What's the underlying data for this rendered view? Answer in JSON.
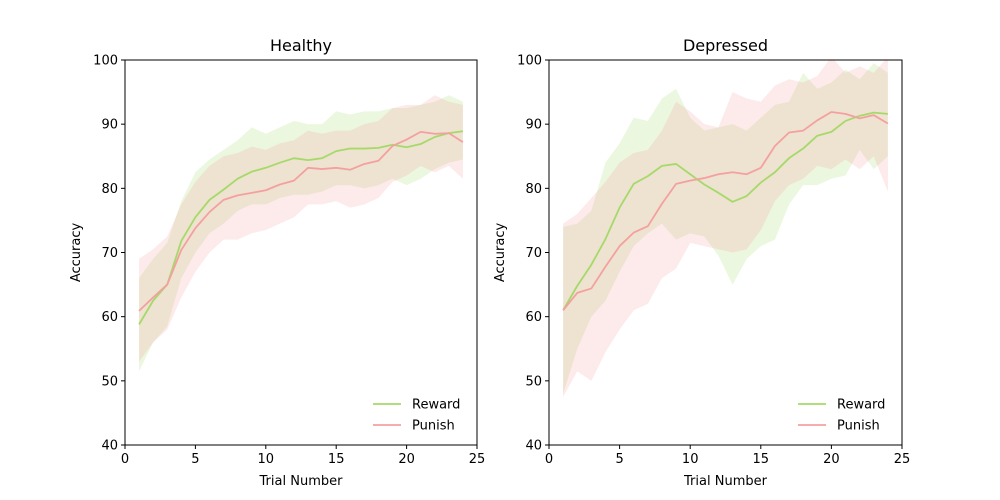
{
  "chart_data": [
    {
      "type": "line",
      "title": "Healthy",
      "xlabel": "Trial Number",
      "ylabel": "Accuracy",
      "xlim": [
        0,
        25
      ],
      "ylim": [
        40,
        100
      ],
      "xticks": [
        0,
        5,
        10,
        15,
        20,
        25
      ],
      "yticks": [
        40,
        50,
        60,
        70,
        80,
        90,
        100
      ],
      "grid": false,
      "legend_position": "lower-right",
      "x": [
        1,
        2,
        3,
        4,
        5,
        6,
        7,
        8,
        9,
        10,
        11,
        12,
        13,
        14,
        15,
        16,
        17,
        18,
        19,
        20,
        21,
        22,
        23,
        24
      ],
      "series": [
        {
          "name": "Reward",
          "color": "#a6d96a",
          "values": [
            58.8,
            62.5,
            65.0,
            71.8,
            75.5,
            78.2,
            79.8,
            81.5,
            82.6,
            83.2,
            84.0,
            84.7,
            84.4,
            84.7,
            85.8,
            86.2,
            86.2,
            86.3,
            86.8,
            86.4,
            86.9,
            88.0,
            88.6,
            88.9
          ],
          "lower": [
            51.5,
            56.0,
            58.5,
            66.0,
            70.0,
            73.0,
            74.5,
            76.5,
            77.5,
            77.5,
            78.5,
            79.0,
            79.0,
            79.5,
            80.5,
            80.5,
            80.0,
            80.5,
            81.5,
            80.5,
            81.5,
            83.0,
            84.0,
            84.5
          ],
          "upper": [
            66.0,
            69.0,
            71.5,
            78.0,
            82.5,
            84.5,
            86.0,
            87.5,
            89.5,
            88.5,
            89.5,
            90.5,
            90.0,
            90.0,
            92.0,
            91.5,
            92.0,
            92.0,
            92.5,
            92.5,
            93.0,
            93.5,
            94.5,
            93.5
          ]
        },
        {
          "name": "Punish",
          "color": "#f4a0a0",
          "values": [
            60.9,
            63.0,
            65.0,
            70.4,
            73.8,
            76.3,
            78.2,
            78.9,
            79.3,
            79.7,
            80.6,
            81.2,
            83.2,
            83.0,
            83.2,
            82.9,
            83.8,
            84.3,
            86.6,
            87.6,
            88.8,
            88.5,
            88.6,
            87.2
          ],
          "lower": [
            53.0,
            56.0,
            58.0,
            63.0,
            67.0,
            70.0,
            72.0,
            72.0,
            73.0,
            73.5,
            74.5,
            75.5,
            77.5,
            77.5,
            78.0,
            77.0,
            77.5,
            78.5,
            81.0,
            82.0,
            83.5,
            82.5,
            83.5,
            81.5
          ],
          "upper": [
            69.0,
            70.5,
            72.5,
            77.5,
            81.0,
            83.5,
            85.0,
            85.5,
            86.5,
            86.0,
            87.0,
            87.5,
            89.0,
            88.5,
            89.0,
            89.0,
            90.0,
            90.5,
            92.5,
            93.0,
            93.0,
            94.5,
            93.5,
            93.0
          ]
        }
      ]
    },
    {
      "type": "line",
      "title": "Depressed",
      "xlabel": "Trial Number",
      "ylabel": "Accuracy",
      "xlim": [
        0,
        25
      ],
      "ylim": [
        40,
        100
      ],
      "xticks": [
        0,
        5,
        10,
        15,
        20,
        25
      ],
      "yticks": [
        40,
        50,
        60,
        70,
        80,
        90,
        100
      ],
      "grid": false,
      "legend_position": "lower-right",
      "x": [
        1,
        2,
        3,
        4,
        5,
        6,
        7,
        8,
        9,
        10,
        11,
        12,
        13,
        14,
        15,
        16,
        17,
        18,
        19,
        20,
        21,
        22,
        23,
        24
      ],
      "series": [
        {
          "name": "Reward",
          "color": "#a6d96a",
          "values": [
            61.0,
            64.8,
            68.1,
            72.1,
            77.0,
            80.7,
            81.9,
            83.5,
            83.8,
            82.2,
            80.6,
            79.3,
            77.9,
            78.8,
            80.9,
            82.5,
            84.7,
            86.2,
            88.2,
            88.8,
            90.5,
            91.3,
            91.8,
            91.6
          ],
          "lower": [
            48.0,
            55.0,
            60.0,
            62.5,
            67.0,
            71.0,
            73.0,
            74.5,
            72.0,
            73.0,
            72.5,
            69.5,
            65.0,
            69.0,
            71.0,
            72.0,
            77.5,
            80.5,
            80.5,
            81.5,
            82.0,
            86.0,
            83.0,
            85.0
          ],
          "upper": [
            74.0,
            74.5,
            76.5,
            84.0,
            87.0,
            91.0,
            90.5,
            94.0,
            95.5,
            91.0,
            89.0,
            89.5,
            90.0,
            89.0,
            91.0,
            93.0,
            93.5,
            98.0,
            95.5,
            96.5,
            98.5,
            97.0,
            99.5,
            98.0
          ]
        },
        {
          "name": "Punish",
          "color": "#f4a0a0",
          "values": [
            61.0,
            63.7,
            64.4,
            67.8,
            71.0,
            73.1,
            74.1,
            77.6,
            80.7,
            81.2,
            81.6,
            82.2,
            82.5,
            82.2,
            83.2,
            86.6,
            88.7,
            89.0,
            90.6,
            91.9,
            91.6,
            90.9,
            91.4,
            90.1
          ],
          "lower": [
            47.5,
            51.5,
            50.0,
            54.5,
            58.0,
            61.0,
            62.0,
            66.0,
            67.5,
            71.5,
            71.0,
            70.5,
            70.0,
            70.5,
            73.5,
            78.0,
            80.5,
            81.5,
            83.5,
            83.0,
            84.5,
            83.0,
            85.0,
            79.5
          ],
          "upper": [
            74.5,
            76.0,
            78.5,
            81.0,
            84.0,
            85.5,
            86.0,
            89.0,
            93.5,
            92.0,
            90.0,
            89.5,
            95.0,
            94.0,
            93.5,
            96.0,
            97.0,
            96.5,
            97.5,
            100.5,
            98.0,
            99.0,
            98.0,
            100.5
          ]
        }
      ]
    }
  ]
}
